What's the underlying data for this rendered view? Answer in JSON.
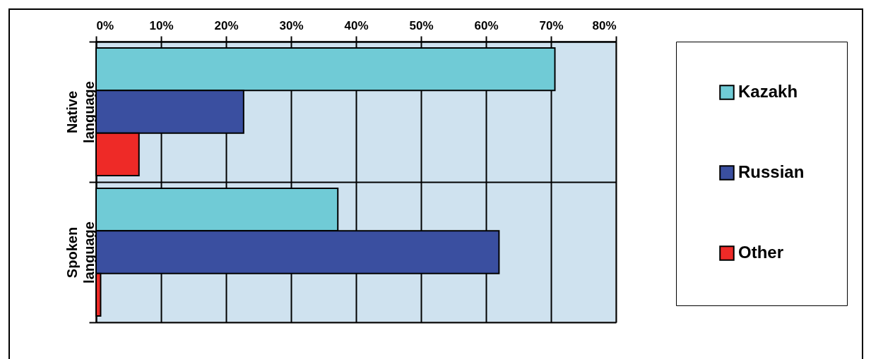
{
  "chart_data": {
    "type": "bar",
    "orientation": "horizontal",
    "categories": [
      "Native language",
      "Spoken language"
    ],
    "series": [
      {
        "name": "Kazakh",
        "color": "#70cbd6",
        "values": [
          70.6,
          37.2
        ]
      },
      {
        "name": "Russian",
        "color": "#3a4fa0",
        "values": [
          22.7,
          62.0
        ]
      },
      {
        "name": "Other",
        "color": "#ee2a27",
        "values": [
          6.6,
          0.7
        ]
      }
    ],
    "xlim": [
      0,
      80
    ],
    "xticks": [
      {
        "value": 0,
        "label": "0%"
      },
      {
        "value": 10,
        "label": "10%"
      },
      {
        "value": 20,
        "label": "20%"
      },
      {
        "value": 30,
        "label": "30%"
      },
      {
        "value": 40,
        "label": "40%"
      },
      {
        "value": 50,
        "label": "50%"
      },
      {
        "value": 60,
        "label": "60%"
      },
      {
        "value": 70,
        "label": "70%"
      },
      {
        "value": 80,
        "label": "80%"
      }
    ],
    "grid": true,
    "legend": "right"
  }
}
